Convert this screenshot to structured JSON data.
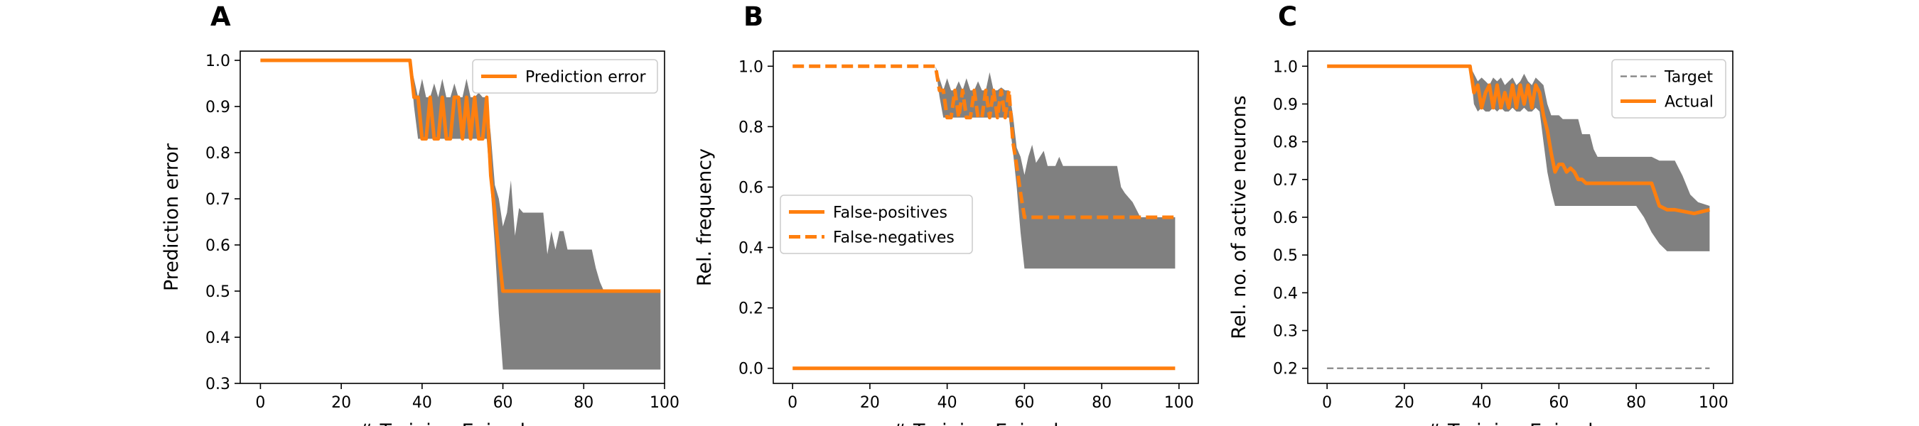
{
  "chart_data": [
    {
      "type": "line",
      "panel_label": "A",
      "xlabel": "# Training Episodes",
      "ylabel": "Prediction error",
      "xlim": [
        -5,
        100
      ],
      "ylim": [
        0.3,
        1.02
      ],
      "xticks": [
        0,
        20,
        40,
        60,
        80,
        100
      ],
      "yticks": [
        0.3,
        0.4,
        0.5,
        0.6,
        0.7,
        0.8,
        0.9,
        1.0
      ],
      "legend_position": "top-right",
      "series": [
        {
          "name": "Prediction error",
          "color": "#ff7f0e",
          "style": "solid",
          "legend": true,
          "x": [
            0,
            37,
            38,
            39,
            40,
            41,
            42,
            43,
            44,
            45,
            46,
            47,
            48,
            49,
            50,
            51,
            52,
            53,
            54,
            55,
            56,
            57,
            58,
            59,
            60,
            65,
            70,
            80,
            90,
            99
          ],
          "y": [
            1.0,
            1.0,
            0.92,
            0.92,
            0.83,
            0.83,
            0.92,
            0.83,
            0.83,
            0.92,
            0.83,
            0.83,
            0.92,
            0.92,
            0.83,
            0.92,
            0.83,
            0.92,
            0.83,
            0.83,
            0.92,
            0.75,
            0.67,
            0.58,
            0.5,
            0.5,
            0.5,
            0.5,
            0.5,
            0.5
          ]
        }
      ],
      "band": {
        "color": "#808080",
        "x": [
          37,
          38,
          39,
          40,
          41,
          42,
          43,
          44,
          45,
          46,
          47,
          48,
          49,
          50,
          51,
          52,
          53,
          54,
          55,
          56,
          57,
          58,
          59,
          60,
          61,
          62,
          63,
          64,
          65,
          66,
          67,
          68,
          69,
          70,
          71,
          72,
          73,
          74,
          75,
          76,
          77,
          78,
          79,
          80,
          81,
          82,
          83,
          84,
          85,
          86,
          87,
          88,
          89,
          90,
          95,
          99
        ],
        "upper": [
          1.0,
          0.96,
          0.92,
          0.96,
          0.92,
          0.92,
          0.95,
          0.92,
          0.96,
          0.92,
          0.92,
          0.95,
          0.92,
          0.92,
          0.96,
          0.92,
          0.92,
          0.93,
          0.92,
          0.92,
          0.84,
          0.73,
          0.7,
          0.64,
          0.67,
          0.74,
          0.62,
          0.68,
          0.67,
          0.67,
          0.67,
          0.67,
          0.67,
          0.67,
          0.58,
          0.63,
          0.59,
          0.63,
          0.63,
          0.59,
          0.59,
          0.59,
          0.59,
          0.59,
          0.59,
          0.59,
          0.55,
          0.52,
          0.5,
          0.5,
          0.5,
          0.5,
          0.5,
          0.5,
          0.5,
          0.5
        ],
        "lower": [
          1.0,
          0.9,
          0.83,
          0.83,
          0.83,
          0.83,
          0.83,
          0.83,
          0.83,
          0.83,
          0.83,
          0.83,
          0.83,
          0.83,
          0.83,
          0.83,
          0.83,
          0.83,
          0.83,
          0.83,
          0.72,
          0.6,
          0.45,
          0.33,
          0.33,
          0.33,
          0.33,
          0.33,
          0.33,
          0.33,
          0.33,
          0.33,
          0.33,
          0.33,
          0.33,
          0.33,
          0.33,
          0.33,
          0.33,
          0.33,
          0.33,
          0.33,
          0.33,
          0.33,
          0.33,
          0.33,
          0.33,
          0.33,
          0.33,
          0.33,
          0.33,
          0.33,
          0.33,
          0.33,
          0.33,
          0.33
        ]
      }
    },
    {
      "type": "line",
      "panel_label": "B",
      "xlabel": "# Training Episodes",
      "ylabel": "Rel. frequency",
      "xlim": [
        -5,
        105
      ],
      "ylim": [
        -0.05,
        1.05
      ],
      "xticks": [
        0,
        20,
        40,
        60,
        80,
        100
      ],
      "yticks": [
        0.0,
        0.2,
        0.4,
        0.6,
        0.8,
        1.0
      ],
      "legend_position": "center-left",
      "series": [
        {
          "name": "False-positives",
          "color": "#ff7f0e",
          "style": "solid",
          "legend": true,
          "x": [
            0,
            99
          ],
          "y": [
            0.0,
            0.0
          ]
        },
        {
          "name": "False-negatives",
          "color": "#ff7f0e",
          "style": "dashed",
          "legend": true,
          "x": [
            0,
            37,
            38,
            39,
            40,
            41,
            42,
            43,
            44,
            45,
            46,
            47,
            48,
            49,
            50,
            51,
            52,
            53,
            54,
            55,
            56,
            57,
            58,
            59,
            60,
            70,
            80,
            90,
            99
          ],
          "y": [
            1.0,
            1.0,
            0.92,
            0.92,
            0.83,
            0.83,
            0.92,
            0.83,
            0.92,
            0.83,
            0.83,
            0.92,
            0.83,
            0.83,
            0.92,
            0.83,
            0.92,
            0.83,
            0.92,
            0.83,
            0.92,
            0.75,
            0.67,
            0.58,
            0.5,
            0.5,
            0.5,
            0.5,
            0.5
          ]
        }
      ],
      "band": {
        "color": "#808080",
        "x": [
          37,
          38,
          39,
          40,
          41,
          42,
          43,
          44,
          45,
          46,
          47,
          48,
          49,
          50,
          51,
          52,
          53,
          54,
          55,
          56,
          57,
          58,
          59,
          60,
          61,
          62,
          63,
          64,
          65,
          66,
          67,
          68,
          69,
          70,
          75,
          80,
          82,
          84,
          85,
          86,
          88,
          90,
          95,
          99
        ],
        "upper": [
          1.0,
          0.96,
          0.92,
          0.96,
          0.92,
          0.92,
          0.95,
          0.92,
          0.96,
          0.92,
          0.92,
          0.95,
          0.92,
          0.92,
          0.98,
          0.92,
          0.92,
          0.93,
          0.92,
          0.92,
          0.84,
          0.73,
          0.7,
          0.64,
          0.7,
          0.74,
          0.68,
          0.7,
          0.72,
          0.67,
          0.67,
          0.67,
          0.7,
          0.67,
          0.67,
          0.67,
          0.67,
          0.67,
          0.6,
          0.58,
          0.55,
          0.5,
          0.5,
          0.5
        ],
        "lower": [
          1.0,
          0.9,
          0.83,
          0.83,
          0.83,
          0.83,
          0.83,
          0.83,
          0.83,
          0.83,
          0.83,
          0.83,
          0.83,
          0.83,
          0.83,
          0.83,
          0.83,
          0.83,
          0.83,
          0.83,
          0.72,
          0.6,
          0.45,
          0.33,
          0.33,
          0.33,
          0.33,
          0.33,
          0.33,
          0.33,
          0.33,
          0.33,
          0.33,
          0.33,
          0.33,
          0.33,
          0.33,
          0.33,
          0.33,
          0.33,
          0.33,
          0.33,
          0.33,
          0.33
        ]
      }
    },
    {
      "type": "line",
      "panel_label": "C",
      "xlabel": "# Training Episodes",
      "ylabel": "Rel. no. of active neurons",
      "xlim": [
        -5,
        105
      ],
      "ylim": [
        0.16,
        1.04
      ],
      "xticks": [
        0,
        20,
        40,
        60,
        80,
        100
      ],
      "yticks": [
        0.2,
        0.3,
        0.4,
        0.5,
        0.6,
        0.7,
        0.8,
        0.9,
        1.0
      ],
      "legend_position": "top-right",
      "series": [
        {
          "name": "Target",
          "color": "#808080",
          "style": "thin-dashed",
          "legend": true,
          "x": [
            0,
            99
          ],
          "y": [
            0.2,
            0.2
          ]
        },
        {
          "name": "Actual",
          "color": "#ff7f0e",
          "style": "solid",
          "legend": true,
          "x": [
            0,
            37,
            38,
            39,
            40,
            41,
            42,
            43,
            44,
            45,
            46,
            47,
            48,
            49,
            50,
            51,
            52,
            53,
            54,
            55,
            56,
            57,
            58,
            59,
            60,
            61,
            62,
            63,
            64,
            65,
            66,
            67,
            68,
            70,
            75,
            80,
            82,
            84,
            85,
            86,
            88,
            90,
            95,
            99
          ],
          "y": [
            1.0,
            1.0,
            0.93,
            0.95,
            0.89,
            0.93,
            0.95,
            0.89,
            0.95,
            0.89,
            0.93,
            0.89,
            0.95,
            0.89,
            0.95,
            0.9,
            0.95,
            0.89,
            0.95,
            0.93,
            0.87,
            0.83,
            0.77,
            0.72,
            0.74,
            0.74,
            0.72,
            0.73,
            0.72,
            0.7,
            0.7,
            0.69,
            0.69,
            0.69,
            0.69,
            0.69,
            0.69,
            0.69,
            0.66,
            0.63,
            0.62,
            0.62,
            0.61,
            0.62
          ]
        }
      ],
      "band": {
        "color": "#808080",
        "x": [
          37,
          38,
          39,
          40,
          41,
          42,
          43,
          44,
          45,
          46,
          47,
          48,
          49,
          50,
          51,
          52,
          53,
          54,
          55,
          56,
          57,
          58,
          59,
          60,
          61,
          62,
          63,
          64,
          65,
          66,
          67,
          68,
          69,
          70,
          72,
          74,
          76,
          78,
          80,
          82,
          84,
          86,
          88,
          90,
          92,
          94,
          96,
          99
        ],
        "upper": [
          1.0,
          0.98,
          0.96,
          0.97,
          0.96,
          0.95,
          0.97,
          0.96,
          0.97,
          0.95,
          0.96,
          0.97,
          0.95,
          0.96,
          0.98,
          0.96,
          0.95,
          0.97,
          0.96,
          0.95,
          0.9,
          0.87,
          0.87,
          0.87,
          0.86,
          0.86,
          0.86,
          0.86,
          0.86,
          0.82,
          0.82,
          0.82,
          0.78,
          0.76,
          0.76,
          0.76,
          0.76,
          0.76,
          0.76,
          0.76,
          0.76,
          0.75,
          0.75,
          0.75,
          0.71,
          0.66,
          0.64,
          0.63
        ],
        "lower": [
          1.0,
          0.9,
          0.88,
          0.89,
          0.88,
          0.88,
          0.89,
          0.88,
          0.89,
          0.88,
          0.88,
          0.89,
          0.88,
          0.88,
          0.89,
          0.88,
          0.88,
          0.89,
          0.88,
          0.8,
          0.72,
          0.67,
          0.63,
          0.63,
          0.63,
          0.63,
          0.63,
          0.63,
          0.63,
          0.63,
          0.63,
          0.63,
          0.63,
          0.63,
          0.63,
          0.63,
          0.63,
          0.63,
          0.63,
          0.6,
          0.56,
          0.53,
          0.51,
          0.51,
          0.51,
          0.51,
          0.51,
          0.51
        ]
      }
    }
  ]
}
